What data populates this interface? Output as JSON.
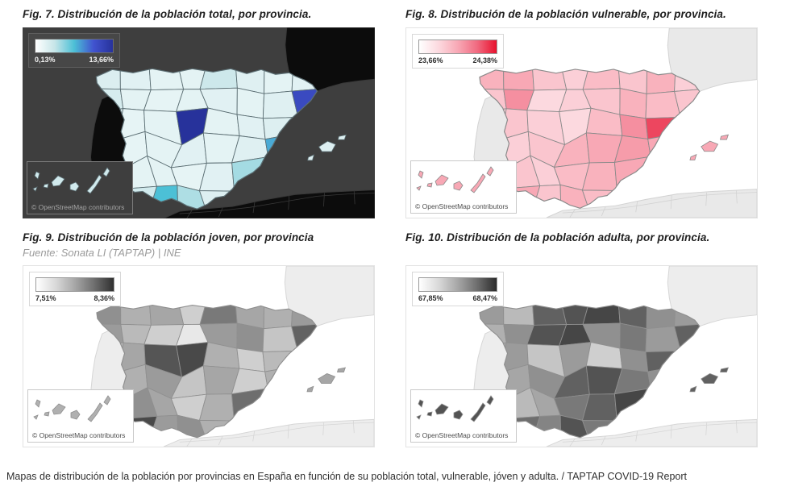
{
  "caption": "Mapas de distribución de la población por provincias en España en función de su población total, vulnerable, jóven y adulta. / TAPTAP COVID-19 Report",
  "figures": [
    {
      "title": "Fig. 7. Distribución de la población total, por provincia.",
      "legend": {
        "min": "0,13%",
        "max": "13,66%"
      },
      "attribution": "© OpenStreetMap contributors",
      "type": "choropleth",
      "colormap": [
        "#ffffff",
        "#c6e5e8",
        "#4cc0d6",
        "#4153cf",
        "#27329b"
      ],
      "theme": {
        "sea": "#3e3e3e",
        "neighbor": "#0c0c0c",
        "neighborStroke": "#383838",
        "border": "#5c6f74"
      },
      "values": [
        0.16,
        0.13,
        0.12,
        0.12,
        0.22,
        0.14,
        0.12,
        0.13,
        0.18,
        0.12,
        0.11,
        0.12,
        0.13,
        0.12,
        0.14,
        0.82,
        0.13,
        0.11,
        0.12,
        1.0,
        0.12,
        0.13,
        0.15,
        0.35,
        0.12,
        0.11,
        0.12,
        0.13,
        0.12,
        0.14,
        0.55,
        0.2,
        0.13,
        0.12,
        0.12,
        0.11,
        0.13,
        0.32,
        0.3,
        0.12,
        0.14,
        0.2,
        0.5,
        0.3,
        0.15,
        0.22,
        0.12,
        0.12
      ],
      "balearics": 0.15,
      "canaries": 0.2
    },
    {
      "title": "Fig. 8. Distribución de la población vulnerable, por provincia.",
      "legend": {
        "min": "23,66%",
        "max": "24,38%"
      },
      "attribution": "© OpenStreetMap contributors",
      "type": "choropleth",
      "colormap": [
        "#ffffff",
        "#fcd9df",
        "#f8a8b5",
        "#f06a80",
        "#e8112d"
      ],
      "theme": {
        "sea": "#ffffff",
        "neighbor": "#e9e9e9",
        "neighborStroke": "#d2d2d2",
        "border": "#8a8a8a"
      },
      "values": [
        0.45,
        0.5,
        0.35,
        0.3,
        0.4,
        0.35,
        0.45,
        0.3,
        0.35,
        0.6,
        0.25,
        0.3,
        0.35,
        0.45,
        0.4,
        0.35,
        0.3,
        0.35,
        0.3,
        0.25,
        0.4,
        0.6,
        0.85,
        0.45,
        0.25,
        0.3,
        0.35,
        0.45,
        0.5,
        0.55,
        0.5,
        0.3,
        0.3,
        0.35,
        0.3,
        0.4,
        0.45,
        0.5,
        0.4,
        0.3,
        0.35,
        0.5,
        0.35,
        0.45,
        0.4,
        0.35,
        0.3,
        0.3
      ],
      "balearics": 0.5,
      "canaries": 0.5
    },
    {
      "title": "Fig. 9. Distribución de la población joven, por provincia",
      "subtitle": "Fuente: Sonata LI (TAPTAP) | INE",
      "legend": {
        "min": "7,51%",
        "max": "8,36%"
      },
      "attribution": "© OpenStreetMap contributors",
      "type": "choropleth",
      "colormap": [
        "#ffffff",
        "#d9d9d9",
        "#a6a6a6",
        "#6e6e6e",
        "#303030"
      ],
      "theme": {
        "sea": "#ffffff",
        "neighbor": "#ededed",
        "neighborStroke": "#d6d6d6",
        "border": "#8f8f8f"
      },
      "values": [
        0.6,
        0.45,
        0.5,
        0.3,
        0.7,
        0.5,
        0.45,
        0.55,
        0.55,
        0.4,
        0.3,
        0.15,
        0.55,
        0.6,
        0.35,
        0.8,
        0.4,
        0.5,
        0.85,
        0.9,
        0.45,
        0.3,
        0.4,
        0.5,
        0.3,
        0.45,
        0.55,
        0.35,
        0.5,
        0.3,
        0.45,
        0.5,
        0.45,
        0.6,
        0.5,
        0.3,
        0.45,
        0.75,
        0.4,
        0.3,
        0.5,
        0.9,
        0.55,
        0.6,
        0.45,
        0.5,
        0.35,
        0.3
      ],
      "balearics": 0.5,
      "canaries": 0.45
    },
    {
      "title": "Fig. 10. Distribución de la población adulta, por provincia.",
      "legend": {
        "min": "67,85%",
        "max": "68,47%"
      },
      "attribution": "© OpenStreetMap contributors",
      "type": "choropleth",
      "colormap": [
        "#ffffff",
        "#d9d9d9",
        "#a6a6a6",
        "#6e6e6e",
        "#2b2b2b"
      ],
      "theme": {
        "sea": "#ffffff",
        "neighbor": "#ededed",
        "neighborStroke": "#d6d6d6",
        "border": "#8f8f8f"
      },
      "values": [
        0.55,
        0.4,
        0.8,
        0.85,
        0.9,
        0.8,
        0.6,
        0.55,
        0.45,
        0.6,
        0.85,
        0.9,
        0.6,
        0.7,
        0.55,
        0.8,
        0.5,
        0.55,
        0.35,
        0.55,
        0.3,
        0.6,
        0.8,
        0.6,
        0.45,
        0.5,
        0.6,
        0.8,
        0.85,
        0.7,
        0.6,
        0.5,
        0.55,
        0.4,
        0.5,
        0.7,
        0.8,
        0.9,
        0.5,
        0.45,
        0.6,
        0.75,
        0.65,
        0.85,
        0.7,
        0.5,
        0.4,
        0.4
      ],
      "balearics": 0.8,
      "canaries": 0.85
    }
  ]
}
